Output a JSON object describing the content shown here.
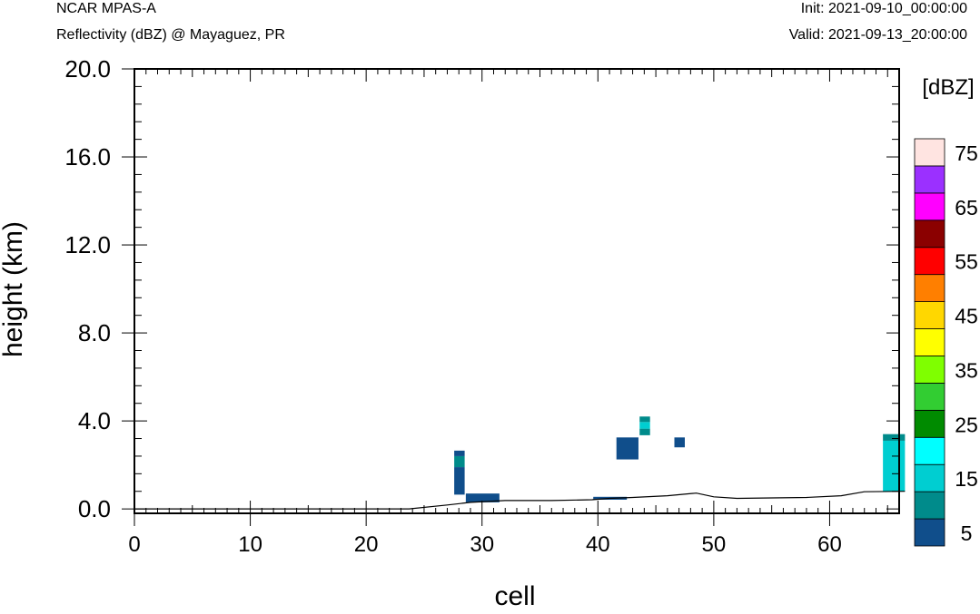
{
  "header": {
    "model": "NCAR MPAS-A",
    "subtitle": "Reflectivity (dBZ) @ Mayaguez, PR",
    "init": "Init: 2021-09-10_00:00:00",
    "valid": "Valid: 2021-09-13_20:00:00"
  },
  "chart_data": {
    "type": "heatmap",
    "title": "Reflectivity (dBZ) @ Mayaguez, PR",
    "xlabel": "cell",
    "ylabel": "height (km)",
    "xlim": [
      0,
      66
    ],
    "ylim": [
      -0.2,
      20
    ],
    "xticks": [
      "0",
      "10",
      "20",
      "30",
      "40",
      "50",
      "60"
    ],
    "yticks": [
      "0.0",
      "4.0",
      "8.0",
      "12.0",
      "16.0",
      "20.0"
    ],
    "colorbar": {
      "unit_label": "[dBZ]",
      "levels": [
        5,
        10,
        15,
        20,
        25,
        30,
        35,
        40,
        45,
        50,
        55,
        60,
        65,
        70,
        75
      ],
      "colors": [
        "#104e8b",
        "#008b8b",
        "#00ced1",
        "#00ffff",
        "#008b00",
        "#32cd32",
        "#7fff00",
        "#ffff00",
        "#ffd700",
        "#ff7f00",
        "#ff0000",
        "#8b0000",
        "#ff00ff",
        "#9b30ff",
        "#ffe4e1"
      ],
      "tick_labels": [
        "5",
        "15",
        "25",
        "35",
        "45",
        "55",
        "65",
        "75"
      ],
      "placement": "right"
    },
    "terrain": [
      [
        0,
        0.0
      ],
      [
        23.7,
        0.0
      ],
      [
        27,
        0.18
      ],
      [
        29,
        0.3
      ],
      [
        32,
        0.38
      ],
      [
        36,
        0.38
      ],
      [
        39.5,
        0.42
      ],
      [
        41,
        0.48
      ],
      [
        43,
        0.52
      ],
      [
        46,
        0.6
      ],
      [
        48.5,
        0.72
      ],
      [
        50,
        0.55
      ],
      [
        52,
        0.48
      ],
      [
        55,
        0.5
      ],
      [
        58,
        0.52
      ],
      [
        61,
        0.6
      ],
      [
        63,
        0.78
      ],
      [
        66.5,
        0.8
      ]
    ],
    "cells": [
      {
        "x0": 27.6,
        "x1": 28.5,
        "y0": 0.65,
        "y1": 1.9,
        "dbz": 5
      },
      {
        "x0": 27.6,
        "x1": 28.5,
        "y0": 1.9,
        "y1": 2.4,
        "dbz": 10
      },
      {
        "x0": 27.6,
        "x1": 28.5,
        "y0": 2.4,
        "y1": 2.65,
        "dbz": 5
      },
      {
        "x0": 28.6,
        "x1": 31.5,
        "y0": 0.3,
        "y1": 0.7,
        "dbz": 5
      },
      {
        "x0": 41.6,
        "x1": 43.5,
        "y0": 2.25,
        "y1": 3.25,
        "dbz": 5
      },
      {
        "x0": 43.6,
        "x1": 44.5,
        "y0": 3.35,
        "y1": 3.65,
        "dbz": 10
      },
      {
        "x0": 43.6,
        "x1": 44.5,
        "y0": 3.65,
        "y1": 3.95,
        "dbz": 15
      },
      {
        "x0": 43.6,
        "x1": 44.5,
        "y0": 3.95,
        "y1": 4.2,
        "dbz": 10
      },
      {
        "x0": 46.6,
        "x1": 47.5,
        "y0": 2.8,
        "y1": 3.25,
        "dbz": 5
      },
      {
        "x0": 64.6,
        "x1": 66.5,
        "y0": 0.8,
        "y1": 3.1,
        "dbz": 15
      },
      {
        "x0": 64.6,
        "x1": 66.5,
        "y0": 3.1,
        "y1": 3.4,
        "dbz": 10
      },
      {
        "x0": 39.6,
        "x1": 42.5,
        "y0": 0.42,
        "y1": 0.55,
        "dbz": 5
      }
    ],
    "grid": false
  }
}
